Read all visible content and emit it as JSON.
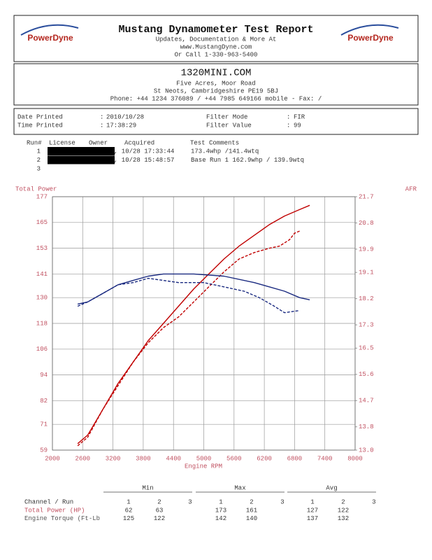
{
  "header": {
    "title": "Mustang Dynamometer Test Report",
    "logo": "PowerDyne",
    "lines": [
      "Updates, Documentation & More At",
      "www.MustangDyne.com",
      "Or Call 1-330-963-5400"
    ]
  },
  "shop": {
    "name": "1320MINI.COM",
    "lines": [
      "Five Acres, Moor Road",
      "St Neots, Cambridgeshire  PE19 5BJ",
      "Phone: +44 1234 376089 / +44 7985 649166 mobile - Fax:  /"
    ]
  },
  "info": {
    "separator": ":",
    "items": [
      {
        "label": "Date Printed",
        "value": "2010/10/28"
      },
      {
        "label": "Time Printed",
        "value": "17:38:29"
      },
      {
        "label": "Filter Mode",
        "value": "FIR"
      },
      {
        "label": "Filter Value",
        "value": "99"
      }
    ]
  },
  "runs": {
    "columns": [
      "Run#",
      "License",
      "Owner",
      "Acquired",
      "Test Comments"
    ],
    "rows": [
      {
        "run": "1",
        "acquired": ", 10/28 17:33:44",
        "comments": "173.4whp /141.4wtq"
      },
      {
        "run": "2",
        "acquired": ", 10/28 15:48:57",
        "comments": "Base Run 1 162.9whp / 139.9wtq"
      },
      {
        "run": "3"
      }
    ]
  },
  "chart_data": {
    "type": "line",
    "y_label": "Total Power",
    "y2_label": "AFR",
    "x_label": "Engine RPM",
    "xlim": [
      2000,
      8000
    ],
    "xticks": [
      2000,
      2600,
      3200,
      3800,
      4400,
      5000,
      5600,
      6200,
      6800,
      7400,
      8000
    ],
    "ylim": [
      59,
      177
    ],
    "yticks": [
      59,
      71,
      82,
      94,
      106,
      118,
      130,
      141,
      153,
      165,
      177
    ],
    "y2lim": [
      13,
      21.7
    ],
    "y2ticks": [
      {
        "value": 13,
        "label": "13.0"
      },
      13.8,
      14.7,
      15.6,
      16.5,
      17.3,
      18.2,
      19.1,
      19.9,
      20.8,
      21.7
    ],
    "grid": true,
    "series": [
      {
        "color": "#c00000",
        "dash": false,
        "x": [
          2500,
          2700,
          3000,
          3300,
          3600,
          3900,
          4200,
          4500,
          4800,
          5100,
          5400,
          5700,
          6000,
          6300,
          6600,
          6900,
          7100
        ],
        "values": [
          62,
          66,
          78,
          90,
          100,
          110,
          118,
          126,
          134,
          141,
          148,
          154,
          159,
          164,
          168,
          171,
          173
        ]
      },
      {
        "color": "#c00000",
        "dash": true,
        "x": [
          2500,
          2700,
          3000,
          3300,
          3600,
          3900,
          4200,
          4500,
          4800,
          5100,
          5400,
          5700,
          6000,
          6300,
          6500,
          6700,
          6800,
          6900
        ],
        "values": [
          61,
          65,
          78,
          89,
          100,
          109,
          116,
          121,
          128,
          135,
          142,
          148,
          151,
          153,
          154,
          157,
          160,
          161
        ]
      },
      {
        "color": "#1a2a80",
        "dash": false,
        "x": [
          2500,
          2700,
          3000,
          3300,
          3600,
          3900,
          4200,
          4800,
          5400,
          6000,
          6300,
          6600,
          6900,
          7100
        ],
        "values": [
          127,
          128,
          132,
          136,
          138,
          140,
          141,
          141,
          140,
          137,
          135,
          133,
          130,
          129
        ]
      },
      {
        "color": "#1a2a80",
        "dash": true,
        "x": [
          2500,
          2700,
          3000,
          3300,
          3600,
          3900,
          4200,
          4500,
          5000,
          5400,
          5800,
          6100,
          6400,
          6600,
          6900
        ],
        "values": [
          126,
          128,
          132,
          136,
          137,
          139,
          138,
          137,
          137,
          135,
          133,
          130,
          126,
          123,
          124
        ]
      }
    ]
  },
  "stats": {
    "row_header": "Channel / Run",
    "groups": [
      "Min",
      "Max",
      "Avg"
    ],
    "runs": [
      "1",
      "2",
      "3"
    ],
    "rows": [
      {
        "label": "Total Power (HP)",
        "values": [
          62,
          63,
          173,
          161,
          127,
          122
        ]
      },
      {
        "label": "Engine Torque (Ft-Lb",
        "values": [
          125,
          122,
          142,
          140,
          137,
          132
        ]
      }
    ]
  }
}
